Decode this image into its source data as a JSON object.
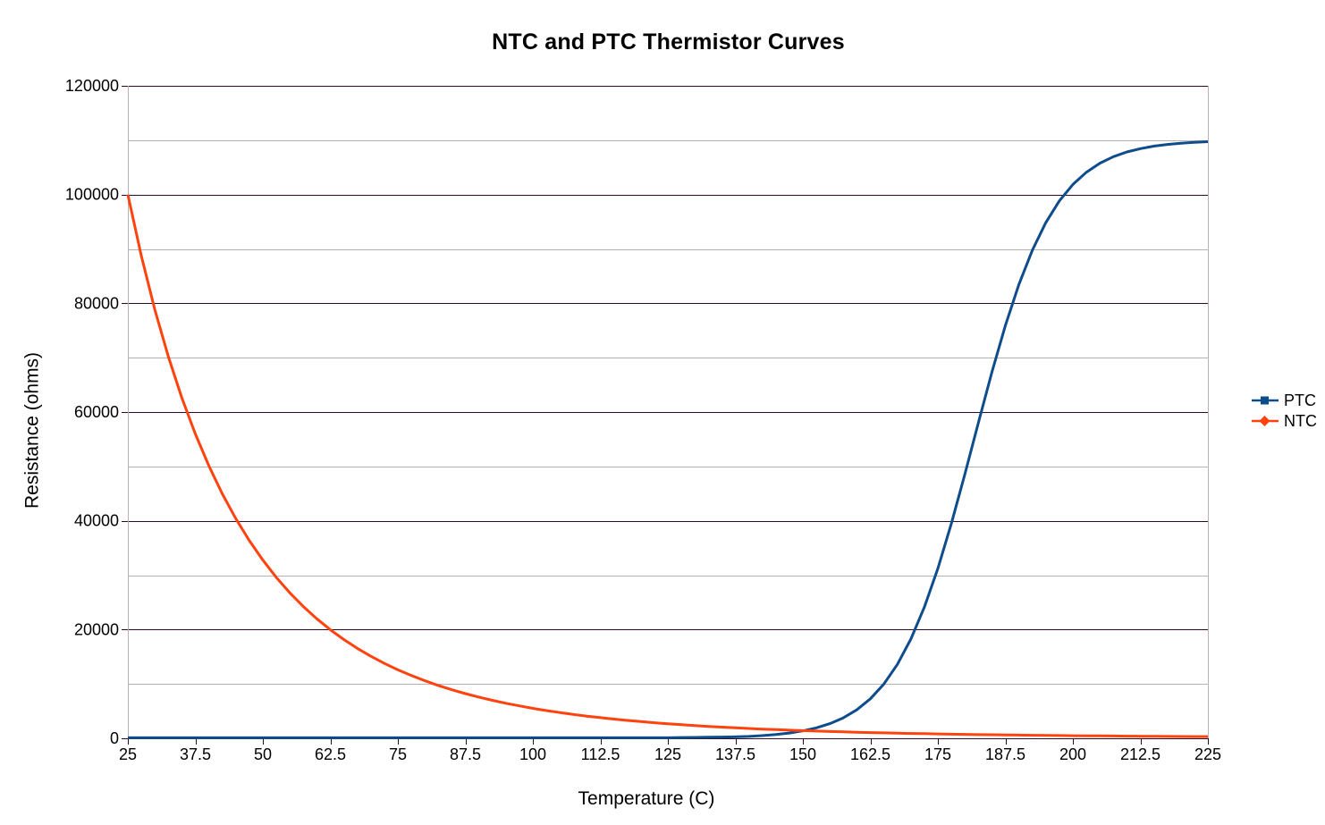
{
  "chart": {
    "title": "NTC and PTC Thermistor Curves",
    "x_axis": {
      "label": "Temperature (C)",
      "tick_labels": [
        "25",
        "37.5",
        "50",
        "62.5",
        "75",
        "87.5",
        "100",
        "112.5",
        "125",
        "137.5",
        "150",
        "162.5",
        "175",
        "187.5",
        "200",
        "212.5",
        "225"
      ]
    },
    "y_axis": {
      "label": "Resistance (ohms)",
      "tick_labels": [
        "0",
        "20000",
        "40000",
        "60000",
        "80000",
        "100000",
        "120000"
      ]
    },
    "legend": {
      "items": [
        {
          "label": "PTC",
          "marker": "square-marker-icon"
        },
        {
          "label": "NTC",
          "marker": "diamond-marker-icon"
        }
      ]
    },
    "colors": {
      "ptc": "#0e4c8c",
      "ntc": "#ff420e",
      "major_grid": "#2e0a28",
      "minor_grid": "#b3b3b3",
      "plot_border": "#b3b3b3",
      "text": "#000000",
      "background": "#ffffff"
    }
  },
  "chart_data": {
    "type": "line",
    "title": "NTC and PTC Thermistor Curves",
    "xlabel": "Temperature (C)",
    "ylabel": "Resistance (ohms)",
    "xlim": [
      25,
      225
    ],
    "ylim": [
      0,
      120000
    ],
    "x_major_ticks": [
      25,
      37.5,
      50,
      62.5,
      75,
      87.5,
      100,
      112.5,
      125,
      137.5,
      150,
      162.5,
      175,
      187.5,
      200,
      212.5,
      225
    ],
    "y_major_ticks": [
      0,
      20000,
      40000,
      60000,
      80000,
      100000,
      120000
    ],
    "y_minor_step": 10000,
    "grid": true,
    "legend_position": "right",
    "x": [
      25,
      27.5,
      30,
      32.5,
      35,
      37.5,
      40,
      42.5,
      45,
      47.5,
      50,
      52.5,
      55,
      57.5,
      60,
      62.5,
      65,
      67.5,
      70,
      72.5,
      75,
      77.5,
      80,
      82.5,
      85,
      87.5,
      90,
      92.5,
      95,
      97.5,
      100,
      102.5,
      105,
      107.5,
      110,
      112.5,
      115,
      117.5,
      120,
      122.5,
      125,
      127.5,
      130,
      132.5,
      135,
      137.5,
      140,
      142.5,
      145,
      147.5,
      150,
      152.5,
      155,
      157.5,
      160,
      162.5,
      165,
      167.5,
      170,
      172.5,
      175,
      177.5,
      180,
      182.5,
      185,
      187.5,
      190,
      192.5,
      195,
      197.5,
      200,
      202.5,
      205,
      207.5,
      210,
      212.5,
      215,
      217.5,
      220,
      222.5,
      225
    ],
    "series": [
      {
        "name": "PTC",
        "color": "#0e4c8c",
        "marker": "square",
        "values": [
          100,
          100,
          100,
          100,
          100,
          100,
          100,
          100,
          100,
          100,
          100,
          100,
          100,
          100,
          100,
          100,
          100,
          100,
          100,
          100,
          100,
          100,
          100,
          100,
          100,
          100,
          100,
          100,
          100,
          100,
          100,
          100,
          100,
          100,
          100,
          100,
          100,
          100,
          100,
          100,
          100,
          150,
          170,
          200,
          230,
          270,
          350,
          490,
          690,
          970,
          1370,
          1920,
          2700,
          3770,
          5240,
          7260,
          9980,
          13590,
          18250,
          24130,
          31240,
          39500,
          48580,
          58030,
          67310,
          75910,
          83450,
          89770,
          94870,
          98840,
          101850,
          104110,
          105760,
          106960,
          107830,
          108450,
          108900,
          109220,
          109450,
          109610,
          109720
        ]
      },
      {
        "name": "NTC",
        "color": "#ff420e",
        "marker": "diamond",
        "values": [
          100000,
          88700,
          78830,
          70200,
          62620,
          55970,
          50120,
          44950,
          40390,
          36350,
          32770,
          29580,
          26750,
          24230,
          21980,
          19960,
          18160,
          16540,
          15090,
          13780,
          12600,
          11550,
          10580,
          9720,
          8930,
          8220,
          7570,
          6980,
          6440,
          5960,
          5510,
          5100,
          4730,
          4390,
          4080,
          3790,
          3530,
          3290,
          3070,
          2860,
          2670,
          2500,
          2340,
          2190,
          2050,
          1920,
          1810,
          1700,
          1590,
          1500,
          1410,
          1330,
          1250,
          1180,
          1120,
          1050,
          1000,
          940,
          890,
          850,
          800,
          760,
          720,
          680,
          650,
          620,
          590,
          560,
          530,
          505,
          480,
          460,
          440,
          420,
          400,
          380,
          365,
          350,
          335,
          320,
          305
        ]
      }
    ]
  }
}
